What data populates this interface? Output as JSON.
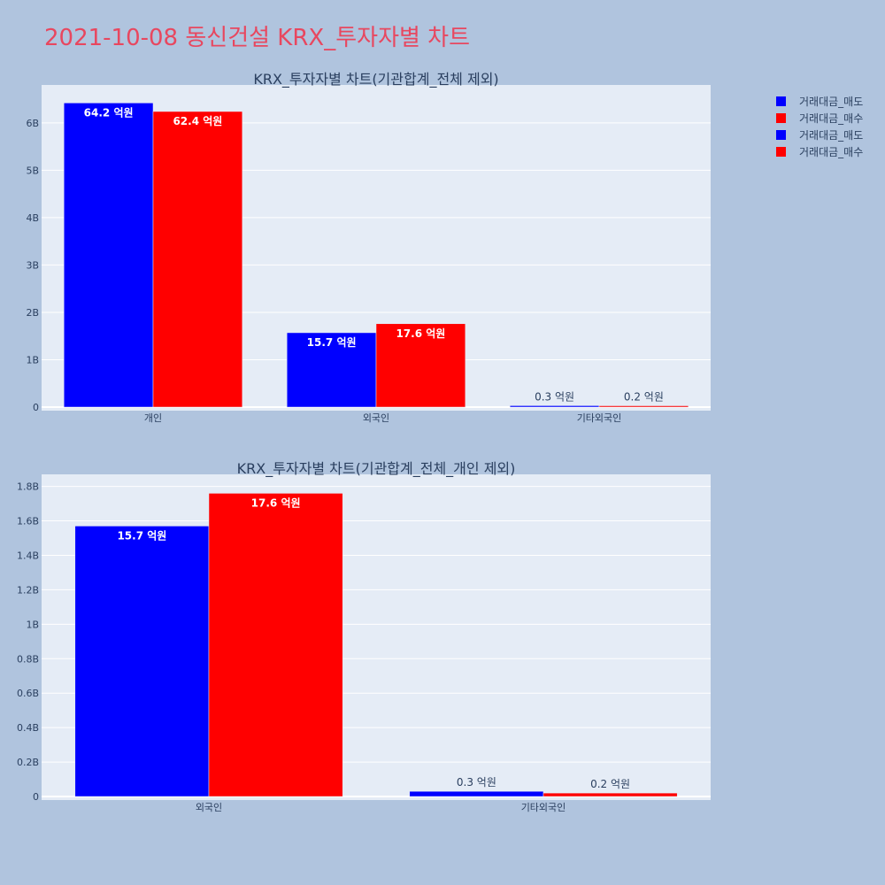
{
  "page_title": "2021-10-08 동신건설 KRX_투자자별 차트",
  "colors": {
    "sell": "#0000ff",
    "buy": "#ff0000",
    "title": "#e8475f"
  },
  "legend": [
    {
      "label": "거래대금_매도",
      "color": "#0000ff"
    },
    {
      "label": "거래대금_매수",
      "color": "#ff0000"
    },
    {
      "label": "거래대금_매도",
      "color": "#0000ff"
    },
    {
      "label": "거래대금_매수",
      "color": "#ff0000"
    }
  ],
  "chart_data": [
    {
      "type": "bar",
      "title": "KRX_투자자별 차트(기관합계_전체 제외)",
      "categories": [
        "개인",
        "외국인",
        "기타외국인"
      ],
      "series": [
        {
          "name": "거래대금_매도",
          "values": [
            6420000000,
            1570000000,
            30000000
          ],
          "labels": [
            "64.2 억원",
            "15.7 억원",
            "0.3 억원"
          ]
        },
        {
          "name": "거래대금_매수",
          "values": [
            6240000000,
            1760000000,
            20000000
          ],
          "labels": [
            "62.4 억원",
            "17.6 억원",
            "0.2 억원"
          ]
        }
      ],
      "ylim": [
        0,
        6800000000
      ],
      "yticks": [
        0,
        1000000000,
        2000000000,
        3000000000,
        4000000000,
        5000000000,
        6000000000
      ],
      "yticklabels": [
        "0",
        "1B",
        "2B",
        "3B",
        "4B",
        "5B",
        "6B"
      ],
      "grid": true
    },
    {
      "type": "bar",
      "title": "KRX_투자자별 차트(기관합계_전체_개인 제외)",
      "categories": [
        "외국인",
        "기타외국인"
      ],
      "series": [
        {
          "name": "거래대금_매도",
          "values": [
            1570000000,
            30000000
          ],
          "labels": [
            "15.7 억원",
            "0.3 억원"
          ]
        },
        {
          "name": "거래대금_매수",
          "values": [
            1760000000,
            20000000
          ],
          "labels": [
            "17.6 억원",
            "0.2 억원"
          ]
        }
      ],
      "ylim": [
        0,
        1870000000
      ],
      "yticks": [
        0,
        200000000,
        400000000,
        600000000,
        800000000,
        1000000000,
        1200000000,
        1400000000,
        1600000000,
        1800000000
      ],
      "yticklabels": [
        "0",
        "0.2B",
        "0.4B",
        "0.6B",
        "0.8B",
        "1B",
        "1.2B",
        "1.4B",
        "1.6B",
        "1.8B"
      ],
      "grid": true
    }
  ]
}
